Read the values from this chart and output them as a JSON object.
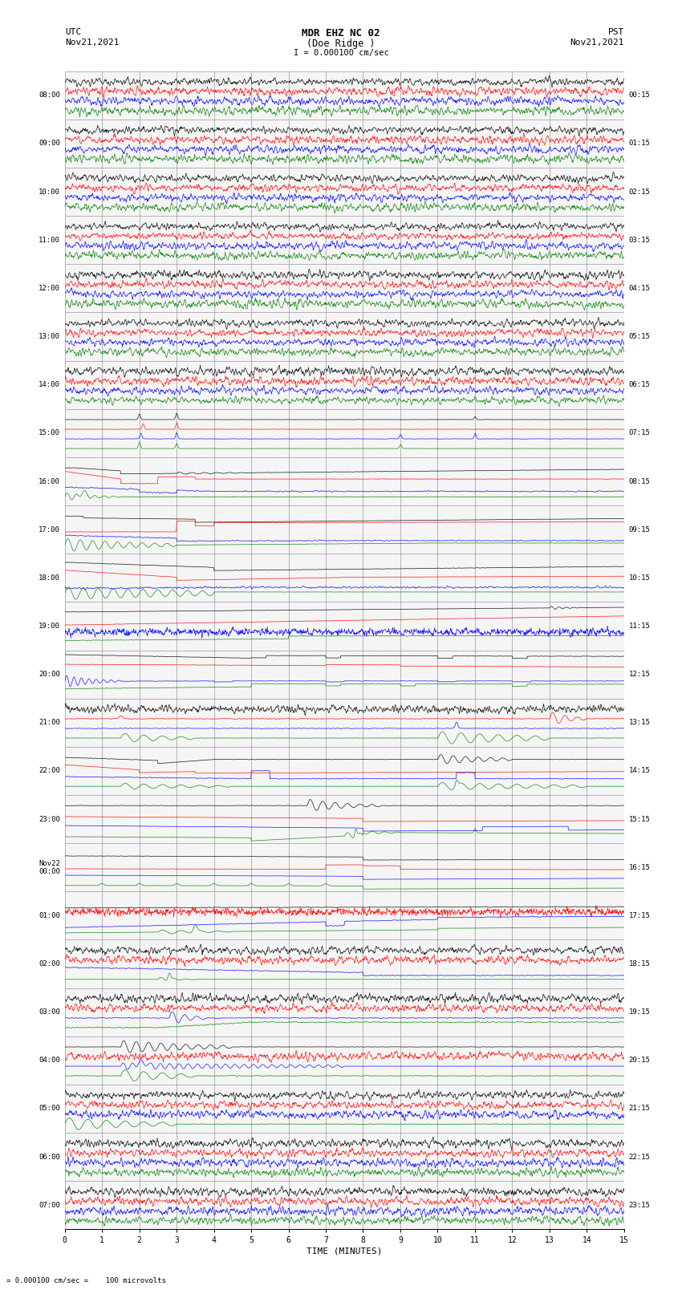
{
  "title_line1": "MDR EHZ NC 02",
  "title_line2": "(Doe Ridge )",
  "scale_label": "I = 0.000100 cm/sec",
  "bottom_label": "= 0.000100 cm/sec =    100 microvolts",
  "xlabel": "TIME (MINUTES)",
  "utc_label1": "UTC",
  "utc_label2": "Nov21,2021",
  "pst_label1": "PST",
  "pst_label2": "Nov21,2021",
  "bg_color": "#ffffff",
  "grid_color": "#aaaaaa",
  "trace_colors": [
    "black",
    "red",
    "blue",
    "green"
  ],
  "num_rows": 24,
  "minutes_per_row": 15,
  "fig_width": 8.5,
  "fig_height": 16.13,
  "left_times": [
    "08:00",
    "09:00",
    "10:00",
    "11:00",
    "12:00",
    "13:00",
    "14:00",
    "15:00",
    "16:00",
    "17:00",
    "18:00",
    "19:00",
    "20:00",
    "21:00",
    "22:00",
    "23:00",
    "Nov22\n00:00",
    "01:00",
    "02:00",
    "03:00",
    "04:00",
    "05:00",
    "06:00",
    "07:00"
  ],
  "right_times": [
    "00:15",
    "01:15",
    "02:15",
    "03:15",
    "04:15",
    "05:15",
    "06:15",
    "07:15",
    "08:15",
    "09:15",
    "10:15",
    "11:15",
    "12:15",
    "13:15",
    "14:15",
    "15:15",
    "16:15",
    "17:15",
    "18:15",
    "19:15",
    "20:15",
    "21:15",
    "22:15",
    "23:15"
  ]
}
